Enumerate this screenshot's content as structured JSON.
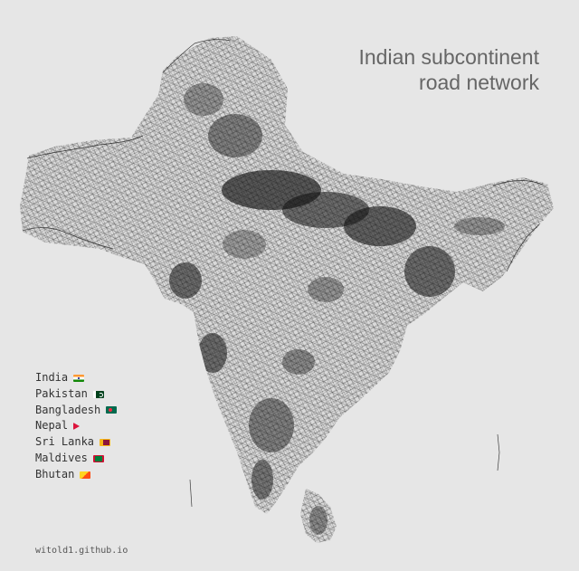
{
  "title": {
    "line1": "Indian subcontinent",
    "line2": "road network"
  },
  "legend": {
    "items": [
      {
        "label": "India",
        "flag": "flag-india-icon"
      },
      {
        "label": "Pakistan",
        "flag": "flag-pakistan-icon"
      },
      {
        "label": "Bangladesh",
        "flag": "flag-bangladesh-icon"
      },
      {
        "label": "Nepal",
        "flag": "flag-nepal-icon"
      },
      {
        "label": "Sri Lanka",
        "flag": "flag-sri-lanka-icon"
      },
      {
        "label": "Maldives",
        "flag": "flag-maldives-icon"
      },
      {
        "label": "Bhutan",
        "flag": "flag-bhutan-icon"
      }
    ]
  },
  "credit": "witold1.github.io",
  "colors": {
    "background": "#e6e6e6",
    "roads": "#111111",
    "title": "#666666"
  }
}
